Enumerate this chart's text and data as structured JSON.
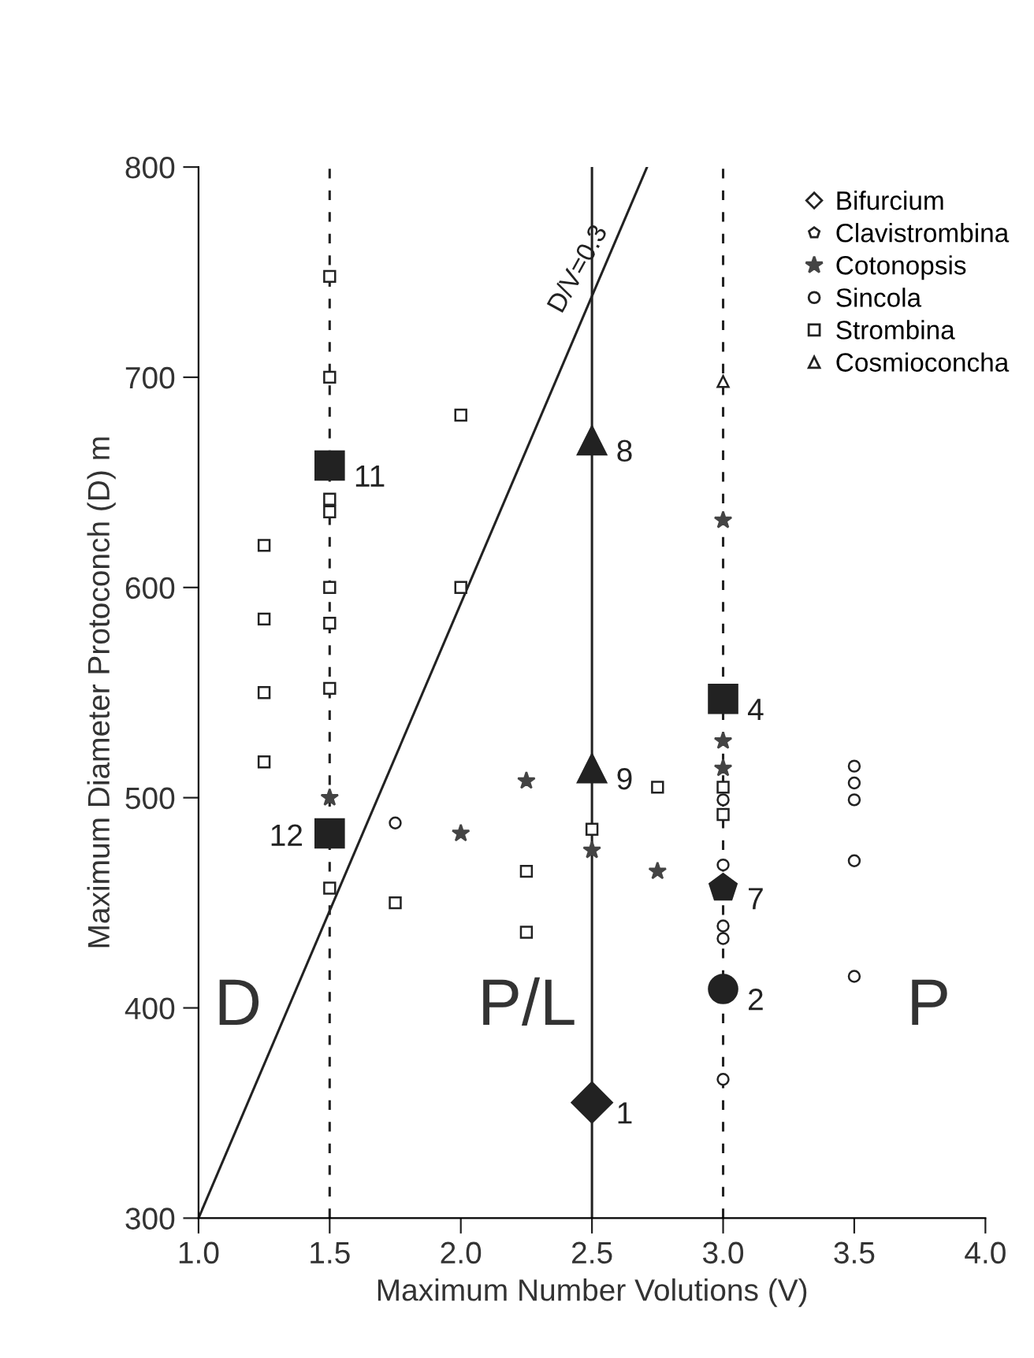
{
  "chart_data": {
    "type": "scatter",
    "xlabel": "Maximum Number Volutions (V)",
    "ylabel": "Maximum Diameter Protoconch (D) m",
    "xlim": [
      1.0,
      4.0
    ],
    "ylim": [
      300,
      800
    ],
    "xticks": [
      {
        "value": 1.0,
        "label": "1.0"
      },
      {
        "value": 1.5,
        "label": "1.5"
      },
      {
        "value": 2.0,
        "label": "2.0"
      },
      {
        "value": 2.5,
        "label": "2.5"
      },
      {
        "value": 3.0,
        "label": "3.0"
      },
      {
        "value": 3.5,
        "label": "3.5"
      },
      {
        "value": 4.0,
        "label": "4.0"
      }
    ],
    "yticks": [
      300,
      400,
      500,
      600,
      700,
      800
    ],
    "grid": false,
    "legend": "top right",
    "ref_lines": [
      {
        "axis": "x",
        "value": 1.5,
        "color": "#222222",
        "line_style": "dashed"
      },
      {
        "axis": "x",
        "value": 2.5,
        "color": "#222222",
        "line_style": "solid"
      },
      {
        "axis": "x",
        "value": 3.0,
        "color": "#222222",
        "line_style": "dashed"
      }
    ],
    "annotations": [
      {
        "text": "D/V=0.3",
        "x": 2.55,
        "y": 745
      },
      "D",
      "P/L",
      "P",
      {
        "text": "1",
        "x": 2.5,
        "y": 355
      },
      {
        "text": "2",
        "x": 3.0,
        "y": 409
      },
      {
        "text": "4",
        "x": 3.0,
        "y": 547
      },
      {
        "text": "7",
        "x": 3.0,
        "y": 457
      },
      {
        "text": "8",
        "x": 2.5,
        "y": 670
      },
      {
        "text": "9",
        "x": 2.5,
        "y": 514
      },
      {
        "text": "11",
        "x": 1.5,
        "y": 658
      },
      {
        "text": "12",
        "x": 1.5,
        "y": 483
      }
    ],
    "series": [
      {
        "name": "Bifurcium",
        "marker": "diamond",
        "color": "#222222"
      },
      {
        "name": "Clavistrombina",
        "color": "#222222"
      },
      {
        "name": "Cotonopsis",
        "marker": "star",
        "color": "#444444",
        "x": [
          1.5,
          2.0,
          2.25,
          2.5,
          2.75,
          3.0,
          3.0,
          3.0
        ],
        "values": [
          500,
          483,
          508,
          475,
          465,
          632,
          527,
          514
        ]
      },
      {
        "name": "Sincola",
        "marker": "circle",
        "color": "#222222",
        "x": [
          1.75,
          3.0,
          3.0,
          3.0,
          3.0,
          3.0,
          3.5,
          3.5,
          3.5,
          3.5,
          3.5
        ],
        "values": [
          488,
          499,
          468,
          439,
          433,
          366,
          515,
          507,
          499,
          470,
          415
        ]
      },
      {
        "name": "Strombina",
        "marker": "square",
        "color": "#222222",
        "x": [
          1.25,
          1.25,
          1.25,
          1.25,
          1.5,
          1.5,
          1.5,
          1.5,
          1.5,
          1.5,
          1.5,
          1.5,
          1.75,
          2.0,
          2.0,
          2.25,
          2.25,
          2.5,
          2.75,
          3.0,
          3.0
        ],
        "values": [
          620,
          585,
          550,
          517,
          748,
          700,
          642,
          636,
          600,
          583,
          552,
          457,
          450,
          682,
          600,
          465,
          436,
          485,
          505,
          505,
          492
        ]
      },
      {
        "name": "Cosmioconcha",
        "marker": "triangle",
        "color": "#222222",
        "x": [
          3.0
        ],
        "values": [
          698
        ]
      },
      {
        "type": "line",
        "marker": "none",
        "color": "#222222",
        "x": [
          1.0,
          2.71
        ],
        "values": [
          300,
          800
        ]
      },
      {
        "marker": "diamond",
        "color": "#222222",
        "x": [
          2.5
        ],
        "values": [
          355
        ]
      },
      {
        "marker": "circle",
        "color": "#222222",
        "x": [
          3.0
        ],
        "values": [
          409
        ]
      },
      {
        "marker": "square",
        "color": "#222222",
        "x": [
          3.0,
          1.5,
          1.5
        ],
        "values": [
          547,
          658,
          483
        ]
      },
      {
        "color": "#222222",
        "x": [
          3.0
        ],
        "values": [
          457
        ]
      },
      {
        "marker": "triangle",
        "color": "#222222",
        "x": [
          2.5,
          2.5
        ],
        "values": [
          670,
          514
        ]
      }
    ]
  }
}
